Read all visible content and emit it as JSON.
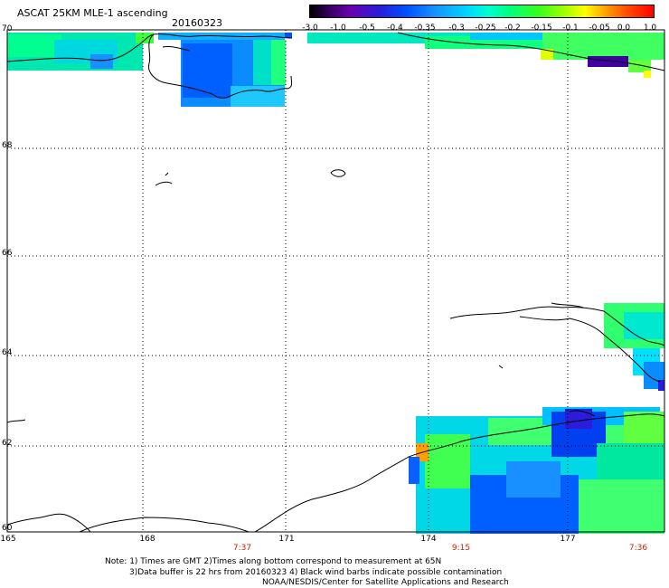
{
  "header": {
    "title": "ASCAT 25KM MLE-1 ascending",
    "date": "20160323"
  },
  "colorbar": {
    "ticks": [
      "-3.0",
      "-1.0",
      "-0.5",
      "-0.4",
      "-0.35",
      "-0.3",
      "-0.25",
      "-0.2",
      "-0.15",
      "-0.1",
      "-0.05",
      "0.0",
      "1.0"
    ],
    "colors": [
      "#000000",
      "#3a0066",
      "#6a00b0",
      "#2a1cd8",
      "#0050ff",
      "#1890ff",
      "#00d8ff",
      "#00ffd0",
      "#00ff80",
      "#30ff20",
      "#a0ff00",
      "#ffff00",
      "#ff0000"
    ]
  },
  "map": {
    "latitude_labels": [
      "70",
      "68",
      "66",
      "64",
      "62",
      "60"
    ],
    "longitude_labels": [
      "165",
      "168",
      "171",
      "174",
      "177"
    ],
    "time_labels": [
      "7:37",
      "9:15",
      "7:36"
    ],
    "grid": "dotted"
  },
  "notes": {
    "line1": "Note: 1) Times are GMT 2)Times along bottom correspond to measurement at 65N",
    "line2": "3)Data buffer is 22 hrs from 20160323 4) Black wind barbs indicate possible contamination",
    "line3": "NOAA/NESDIS/Center for Satellite Applications and Research"
  }
}
